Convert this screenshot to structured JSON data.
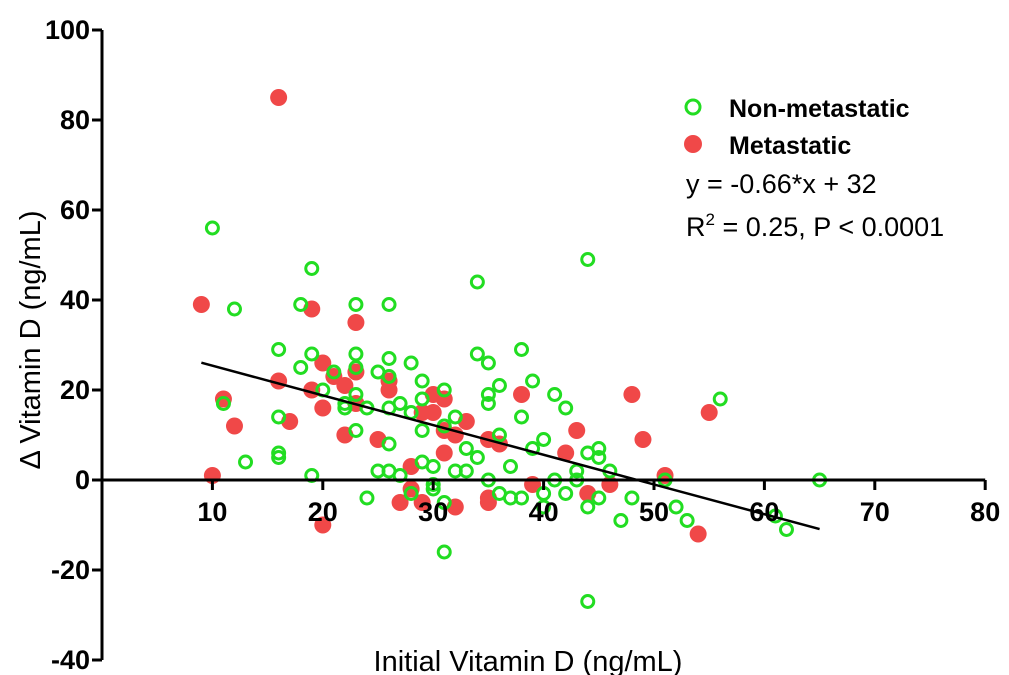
{
  "chart_data": {
    "type": "scatter",
    "xlabel": "Initial Vitamin D (ng/mL)",
    "ylabel": "Δ Vitamin D (ng/mL)",
    "xlim": [
      0,
      80
    ],
    "ylim": [
      -40,
      100
    ],
    "x_ticks": [
      10,
      20,
      30,
      40,
      50,
      60,
      70,
      80
    ],
    "y_ticks": [
      100,
      80,
      60,
      40,
      20,
      0,
      -20,
      -40
    ],
    "legend_placement": "top-right",
    "grid": false,
    "series": [
      {
        "name": "Non-metastatic",
        "marker": "open-circle",
        "color": "#22dd22",
        "points": [
          [
            10,
            56
          ],
          [
            11,
            17
          ],
          [
            12,
            38
          ],
          [
            13,
            4
          ],
          [
            16,
            29
          ],
          [
            16,
            14
          ],
          [
            16,
            6
          ],
          [
            16,
            5
          ],
          [
            18,
            39
          ],
          [
            18,
            25
          ],
          [
            19,
            47
          ],
          [
            19,
            28
          ],
          [
            19,
            1
          ],
          [
            20,
            20
          ],
          [
            21,
            24
          ],
          [
            22,
            17
          ],
          [
            22,
            16
          ],
          [
            23,
            39
          ],
          [
            23,
            28
          ],
          [
            23,
            25
          ],
          [
            23,
            19
          ],
          [
            23,
            11
          ],
          [
            24,
            16
          ],
          [
            24,
            -4
          ],
          [
            25,
            24
          ],
          [
            25,
            2
          ],
          [
            26,
            39
          ],
          [
            26,
            27
          ],
          [
            26,
            23
          ],
          [
            26,
            16
          ],
          [
            26,
            8
          ],
          [
            26,
            2
          ],
          [
            27,
            17
          ],
          [
            27,
            1
          ],
          [
            28,
            26
          ],
          [
            28,
            15
          ],
          [
            28,
            -3
          ],
          [
            29,
            22
          ],
          [
            29,
            18
          ],
          [
            29,
            11
          ],
          [
            29,
            4
          ],
          [
            30,
            3
          ],
          [
            30,
            -1
          ],
          [
            30,
            -2
          ],
          [
            31,
            20
          ],
          [
            31,
            12
          ],
          [
            31,
            -16
          ],
          [
            31,
            -5
          ],
          [
            32,
            14
          ],
          [
            32,
            2
          ],
          [
            33,
            7
          ],
          [
            33,
            2
          ],
          [
            34,
            44
          ],
          [
            34,
            28
          ],
          [
            34,
            5
          ],
          [
            35,
            26
          ],
          [
            35,
            19
          ],
          [
            35,
            17
          ],
          [
            35,
            0
          ],
          [
            36,
            21
          ],
          [
            36,
            10
          ],
          [
            36,
            -3
          ],
          [
            37,
            3
          ],
          [
            37,
            -4
          ],
          [
            38,
            29
          ],
          [
            38,
            14
          ],
          [
            38,
            -4
          ],
          [
            39,
            22
          ],
          [
            39,
            7
          ],
          [
            40,
            9
          ],
          [
            40,
            -3
          ],
          [
            40,
            -6
          ],
          [
            41,
            19
          ],
          [
            41,
            0
          ],
          [
            42,
            16
          ],
          [
            42,
            -3
          ],
          [
            43,
            2
          ],
          [
            43,
            0
          ],
          [
            44,
            49
          ],
          [
            44,
            6
          ],
          [
            44,
            -6
          ],
          [
            44,
            -27
          ],
          [
            45,
            7
          ],
          [
            45,
            5
          ],
          [
            45,
            -4
          ],
          [
            46,
            2
          ],
          [
            47,
            -9
          ],
          [
            48,
            -4
          ],
          [
            51,
            0
          ],
          [
            52,
            -6
          ],
          [
            53,
            -9
          ],
          [
            56,
            18
          ],
          [
            61,
            -8
          ],
          [
            62,
            -11
          ],
          [
            65,
            0
          ]
        ]
      },
      {
        "name": "Metastatic",
        "marker": "filled-circle",
        "color": "#f04848",
        "points": [
          [
            9,
            39
          ],
          [
            10,
            1
          ],
          [
            11,
            18
          ],
          [
            12,
            12
          ],
          [
            16,
            85
          ],
          [
            16,
            22
          ],
          [
            17,
            13
          ],
          [
            19,
            38
          ],
          [
            19,
            20
          ],
          [
            20,
            26
          ],
          [
            20,
            16
          ],
          [
            20,
            -10
          ],
          [
            21,
            23
          ],
          [
            22,
            21
          ],
          [
            22,
            10
          ],
          [
            23,
            35
          ],
          [
            23,
            24
          ],
          [
            23,
            17
          ],
          [
            25,
            9
          ],
          [
            26,
            22
          ],
          [
            26,
            20
          ],
          [
            27,
            -5
          ],
          [
            28,
            3
          ],
          [
            28,
            -2
          ],
          [
            29,
            15
          ],
          [
            29,
            -5
          ],
          [
            30,
            19
          ],
          [
            30,
            15
          ],
          [
            31,
            18
          ],
          [
            31,
            11
          ],
          [
            31,
            6
          ],
          [
            32,
            10
          ],
          [
            32,
            -6
          ],
          [
            33,
            13
          ],
          [
            35,
            9
          ],
          [
            35,
            -4
          ],
          [
            35,
            -5
          ],
          [
            36,
            8
          ],
          [
            38,
            19
          ],
          [
            39,
            -1
          ],
          [
            42,
            6
          ],
          [
            43,
            11
          ],
          [
            44,
            -3
          ],
          [
            46,
            -1
          ],
          [
            48,
            19
          ],
          [
            49,
            9
          ],
          [
            51,
            1
          ],
          [
            54,
            -12
          ],
          [
            55,
            15
          ]
        ]
      }
    ],
    "regression_line": {
      "x_start": 9,
      "x_end": 65,
      "slope": -0.66,
      "intercept": 32
    },
    "annotations": {
      "equation": "y = -0.66*x + 32",
      "r_squared_prefix": "R",
      "r_squared_sup": "2",
      "r_squared_rest": " = 0.25, P < 0.0001"
    }
  }
}
